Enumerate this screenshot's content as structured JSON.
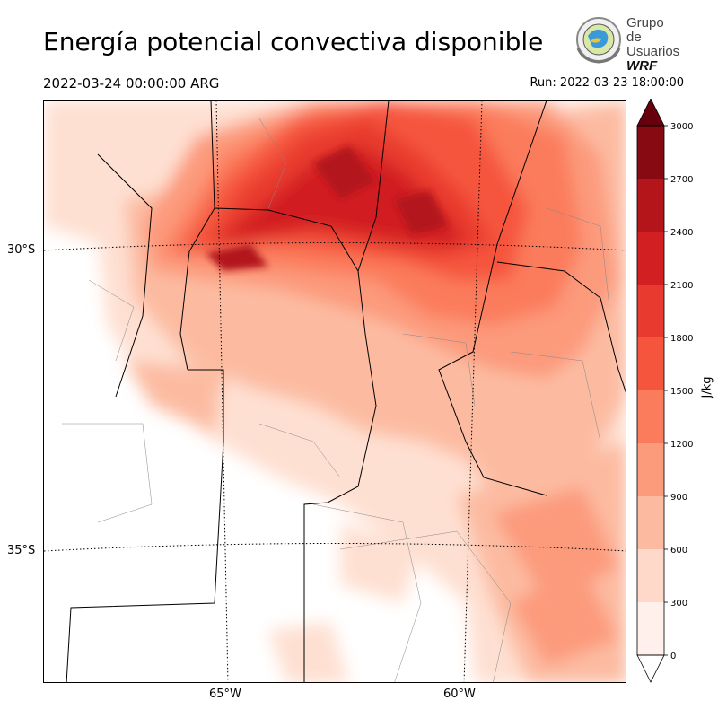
{
  "header": {
    "title": "Energía potencial convectiva disponible",
    "valid_time": "2022-03-24 00:00:00 ARG",
    "run_time": "Run: 2022-03-23 18:00:00"
  },
  "logo": {
    "line1": "Grupo de",
    "line2": "Usuarios",
    "line3": "WRF"
  },
  "map": {
    "lat_labels": [
      "30°S",
      "35°S"
    ],
    "lon_labels": [
      "65°W",
      "60°W"
    ]
  },
  "colorbar": {
    "unit": "J/kg",
    "ticks": [
      "0",
      "300",
      "600",
      "900",
      "1200",
      "1500",
      "1800",
      "2100",
      "2400",
      "2700",
      "3000"
    ],
    "colors": [
      "#fff0eb",
      "#fed8c9",
      "#fcbba1",
      "#fc9a7c",
      "#fb7c5c",
      "#f5553d",
      "#e83a2e",
      "#d11f22",
      "#b3151b",
      "#870a12",
      "#67000d"
    ]
  }
}
